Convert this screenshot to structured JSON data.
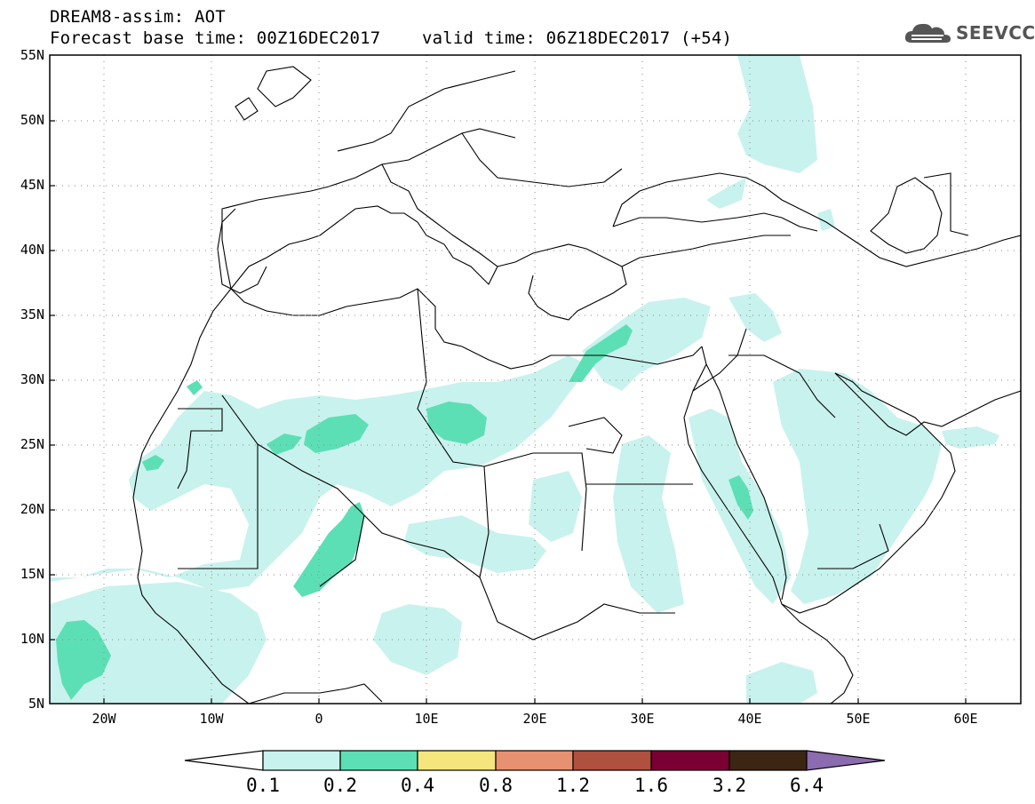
{
  "header": {
    "title_line1": "DREAM8-assim: AOT",
    "title_line2": "Forecast base time: 00Z16DEC2017    valid time: 06Z18DEC2017 (+54)",
    "logo_text": "SEEVCCC"
  },
  "map": {
    "lat_labels": [
      "55N",
      "50N",
      "45N",
      "40N",
      "35N",
      "30N",
      "25N",
      "20N",
      "15N",
      "10N",
      "5N"
    ],
    "lon_labels": [
      "20W",
      "10W",
      "0",
      "10E",
      "20E",
      "30E",
      "40E",
      "50E",
      "60E"
    ],
    "extent": {
      "lon": [
        -25,
        65
      ],
      "lat": [
        5,
        55
      ]
    },
    "gridlines": "dotted"
  },
  "colorbar": {
    "labels": [
      "0.1",
      "0.2",
      "0.4",
      "0.8",
      "1.2",
      "1.6",
      "3.2",
      "6.4"
    ],
    "colors": [
      "#ffffff",
      "#c8f2ed",
      "#5ddfb5",
      "#f4e67c",
      "#e89170",
      "#b0513f",
      "#7a0034",
      "#3d2514",
      "#8d6bb0"
    ]
  },
  "legend_colors": {
    "level_0_1": "#c8f2ed",
    "level_0_2": "#5ddfb5",
    "coast": "#000000"
  }
}
